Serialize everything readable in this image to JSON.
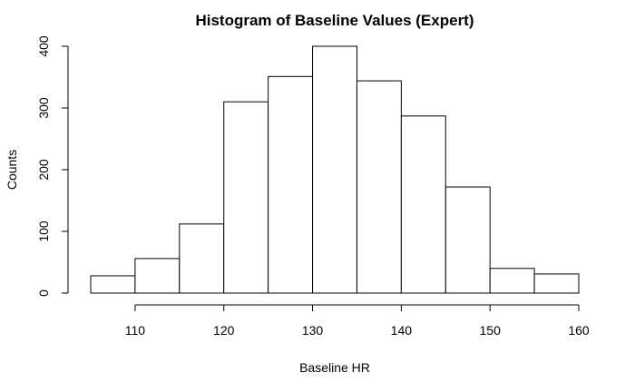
{
  "chart_data": {
    "type": "bar",
    "title": "Histogram of Baseline Values (Expert)",
    "xlabel": "Baseline HR",
    "ylabel": "Counts",
    "bins": [
      {
        "from": 105,
        "to": 110,
        "count": 28
      },
      {
        "from": 110,
        "to": 115,
        "count": 56
      },
      {
        "from": 115,
        "to": 120,
        "count": 112
      },
      {
        "from": 120,
        "to": 125,
        "count": 310
      },
      {
        "from": 125,
        "to": 130,
        "count": 351
      },
      {
        "from": 130,
        "to": 135,
        "count": 400
      },
      {
        "from": 135,
        "to": 140,
        "count": 344
      },
      {
        "from": 140,
        "to": 145,
        "count": 287
      },
      {
        "from": 145,
        "to": 150,
        "count": 172
      },
      {
        "from": 150,
        "to": 155,
        "count": 40
      },
      {
        "from": 155,
        "to": 160,
        "count": 31
      }
    ],
    "xlim": [
      105,
      160
    ],
    "ylim": [
      0,
      400
    ],
    "xticks": [
      110,
      120,
      130,
      140,
      150,
      160
    ],
    "xtick_labels": [
      "110",
      "120",
      "130",
      "140",
      "150",
      "160"
    ],
    "yticks": [
      0,
      100,
      200,
      300,
      400
    ],
    "ytick_labels": [
      "0",
      "100",
      "200",
      "300",
      "400"
    ],
    "grid": false,
    "legend": "none",
    "colors": {
      "bar_fill": "#ffffff",
      "bar_stroke": "#000000"
    }
  }
}
